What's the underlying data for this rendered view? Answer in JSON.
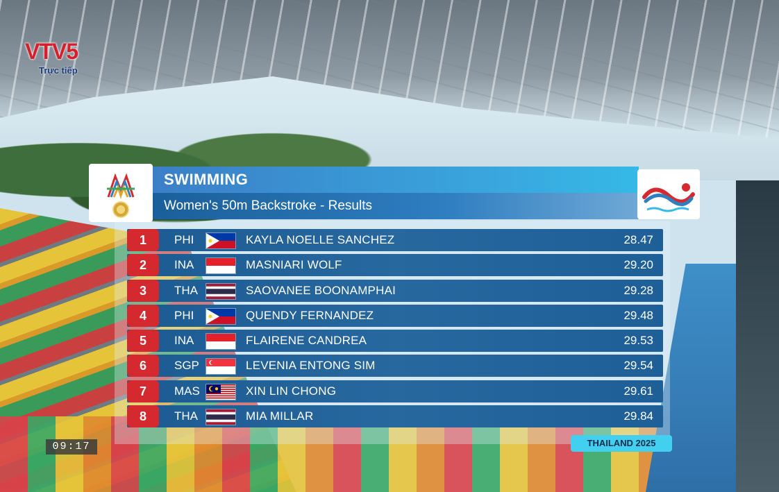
{
  "broadcaster": {
    "logo_text": "VTV5",
    "live_label": "Trực tiếp"
  },
  "clock": "09:17",
  "event": {
    "sport": "SWIMMING",
    "title": "Women's 50m Backstroke - Results"
  },
  "results": [
    {
      "rank": "1",
      "country": "PHI",
      "flag": "philippines",
      "name": "KAYLA NOELLE SANCHEZ",
      "time": "28.47"
    },
    {
      "rank": "2",
      "country": "INA",
      "flag": "indonesia",
      "name": "MASNIARI WOLF",
      "time": "29.20"
    },
    {
      "rank": "3",
      "country": "THA",
      "flag": "thailand",
      "name": "SAOVANEE BOONAMPHAI",
      "time": "29.28"
    },
    {
      "rank": "4",
      "country": "PHI",
      "flag": "philippines",
      "name": "QUENDY FERNANDEZ",
      "time": "29.48"
    },
    {
      "rank": "5",
      "country": "INA",
      "flag": "indonesia",
      "name": "FLAIRENE CANDREA",
      "time": "29.53"
    },
    {
      "rank": "6",
      "country": "SGP",
      "flag": "singapore",
      "name": "LEVENIA ENTONG SIM",
      "time": "29.54"
    },
    {
      "rank": "7",
      "country": "MAS",
      "flag": "malaysia",
      "name": "XIN LIN CHONG",
      "time": "29.61"
    },
    {
      "rank": "8",
      "country": "THA",
      "flag": "thailand",
      "name": "MIA MILLAR",
      "time": "29.84"
    }
  ],
  "footer": "THAILAND 2025",
  "colors": {
    "rank_badge": "#d42a2f",
    "row_bg": "#1c5b92",
    "title_bar": "#3aa6dd",
    "footer_bg": "#43d0f0"
  },
  "icons": {
    "games_emblem": "sea-games-emblem-icon",
    "sport": "swimming-pictogram-icon"
  }
}
